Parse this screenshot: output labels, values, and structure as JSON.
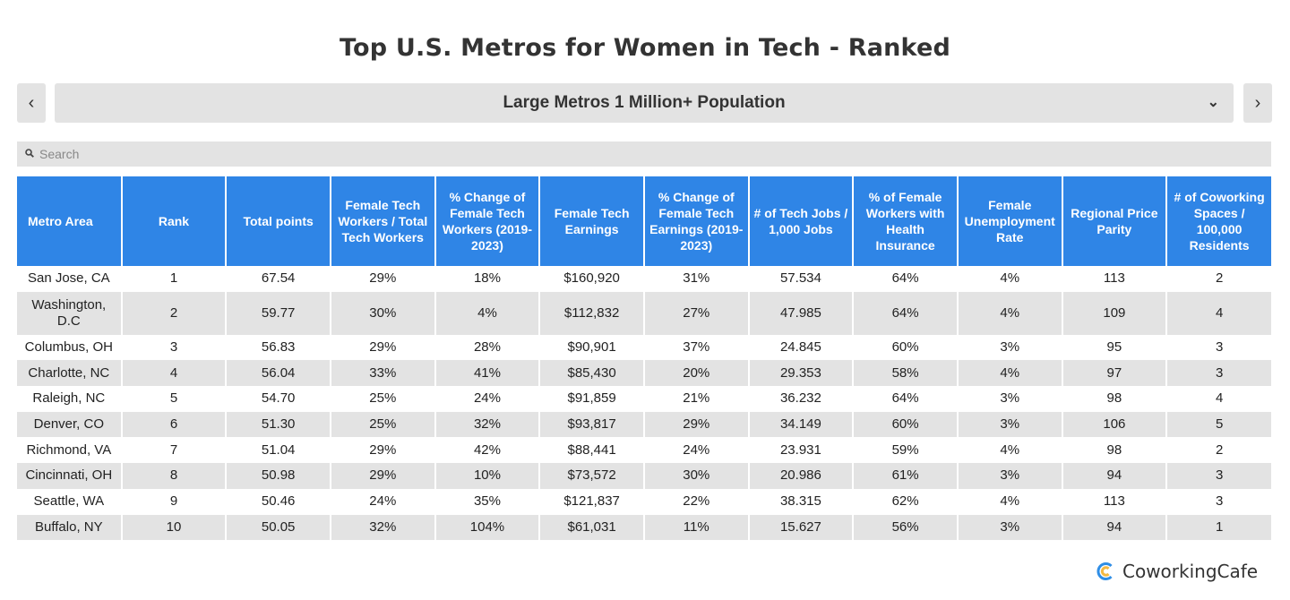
{
  "title": "Top U.S. Metros for Women in Tech - Ranked",
  "nav": {
    "prev_icon": "‹",
    "next_icon": "›",
    "selected": "Large Metros 1 Million+ Population",
    "dropdown_icon": "⌄"
  },
  "search": {
    "placeholder": "Search",
    "value": ""
  },
  "table": {
    "headers": [
      "Metro Area",
      "Rank",
      "Total points",
      "Female Tech Workers / Total Tech Workers",
      "% Change of Female Tech Workers (2019-2023)",
      "Female Tech Earnings",
      "% Change of Female Tech Earnings (2019-2023)",
      "# of Tech Jobs / 1,000 Jobs",
      "% of Female Workers with Health Insurance",
      "Female Unemployment Rate",
      "Regional Price Parity",
      "# of Coworking Spaces / 100,000 Residents"
    ],
    "rows": [
      [
        "San Jose, CA",
        "1",
        "67.54",
        "29%",
        "18%",
        "$160,920",
        "31%",
        "57.534",
        "64%",
        "4%",
        "113",
        "2"
      ],
      [
        "Washington, D.C",
        "2",
        "59.77",
        "30%",
        "4%",
        "$112,832",
        "27%",
        "47.985",
        "64%",
        "4%",
        "109",
        "4"
      ],
      [
        "Columbus, OH",
        "3",
        "56.83",
        "29%",
        "28%",
        "$90,901",
        "37%",
        "24.845",
        "60%",
        "3%",
        "95",
        "3"
      ],
      [
        "Charlotte, NC",
        "4",
        "56.04",
        "33%",
        "41%",
        "$85,430",
        "20%",
        "29.353",
        "58%",
        "4%",
        "97",
        "3"
      ],
      [
        "Raleigh, NC",
        "5",
        "54.70",
        "25%",
        "24%",
        "$91,859",
        "21%",
        "36.232",
        "64%",
        "3%",
        "98",
        "4"
      ],
      [
        "Denver, CO",
        "6",
        "51.30",
        "25%",
        "32%",
        "$93,817",
        "29%",
        "34.149",
        "60%",
        "3%",
        "106",
        "5"
      ],
      [
        "Richmond, VA",
        "7",
        "51.04",
        "29%",
        "42%",
        "$88,441",
        "24%",
        "23.931",
        "59%",
        "4%",
        "98",
        "2"
      ],
      [
        "Cincinnati, OH",
        "8",
        "50.98",
        "29%",
        "10%",
        "$73,572",
        "30%",
        "20.986",
        "61%",
        "3%",
        "94",
        "3"
      ],
      [
        "Seattle, WA",
        "9",
        "50.46",
        "24%",
        "35%",
        "$121,837",
        "22%",
        "38.315",
        "62%",
        "4%",
        "113",
        "3"
      ],
      [
        "Buffalo, NY",
        "10",
        "50.05",
        "32%",
        "104%",
        "$61,031",
        "11%",
        "15.627",
        "56%",
        "3%",
        "94",
        "1"
      ]
    ]
  },
  "logo": {
    "text": "CoworkingCafe"
  },
  "colors": {
    "header_bg": "#2f85e6",
    "stripe": "#e3e3e3",
    "logo_blue": "#2f8ee6",
    "logo_yellow": "#f5b942"
  }
}
